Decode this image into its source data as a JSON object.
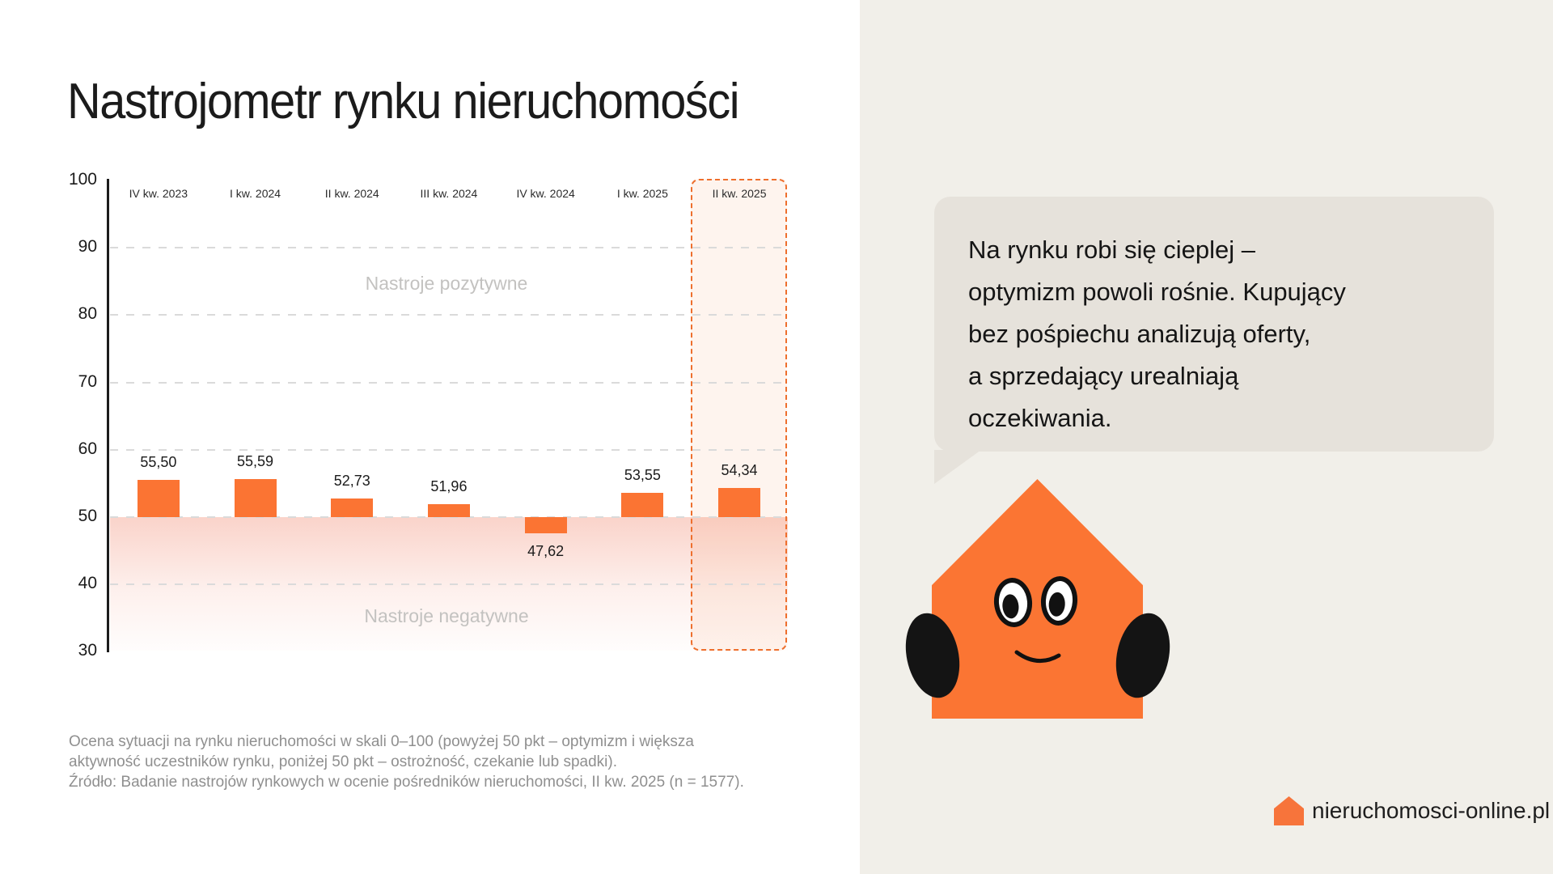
{
  "title": "Nastrojometr rynku nieruchomości",
  "chart_data": {
    "type": "bar",
    "categories": [
      "IV kw. 2023",
      "I kw. 2024",
      "II kw. 2024",
      "III kw. 2024",
      "IV kw. 2024",
      "I kw. 2025",
      "II kw. 2025"
    ],
    "values": [
      55.5,
      55.59,
      52.73,
      51.96,
      47.62,
      53.55,
      54.34
    ],
    "value_labels": [
      "55,50",
      "55,59",
      "52,73",
      "51,96",
      "47,62",
      "53,55",
      "54,34"
    ],
    "baseline": 50,
    "ylim": [
      30,
      100
    ],
    "yticks": [
      100,
      90,
      80,
      70,
      60,
      50,
      40,
      30
    ],
    "grid": true,
    "zone_positive_label": "Nastroje pozytywne",
    "zone_negative_label": "Nastroje negatywne",
    "highlighted_category": "II kw. 2025",
    "highlight_index": 6,
    "bar_color": "#FB7433",
    "highlight_border_color": "#EE6F2D",
    "gridline_color": "#DADADA",
    "negative_zone_tint": "#F28C74"
  },
  "footnote": {
    "lines": [
      "Ocena sytuacji na rynku nieruchomości w skali 0–100 (powyżej 50 pkt – optymizm i większa",
      "aktywność uczestników rynku, poniżej 50 pkt – ostrożność, czekanie lub spadki).",
      "Źródło: Badanie nastrojów rynkowych w ocenie pośredników  nieruchomości, II kw. 2025 (n = 1577)."
    ]
  },
  "bubble": {
    "lines": [
      "Na rynku robi się cieplej –",
      "optymizm powoli rośnie. Kupujący",
      "bez pośpiechu analizują oferty,",
      "a sprzedający urealniają",
      "oczekiwania."
    ]
  },
  "logo": {
    "text": "nieruchomosci-online.pl"
  },
  "colors": {
    "accent_orange": "#FB7433",
    "panel_beige": "#F1EFE9",
    "bubble_beige": "#E6E2DB",
    "text_dark": "#1B1B1B",
    "text_gray": "#8F8F8F",
    "zone_label_gray": "#C3C2C0"
  }
}
